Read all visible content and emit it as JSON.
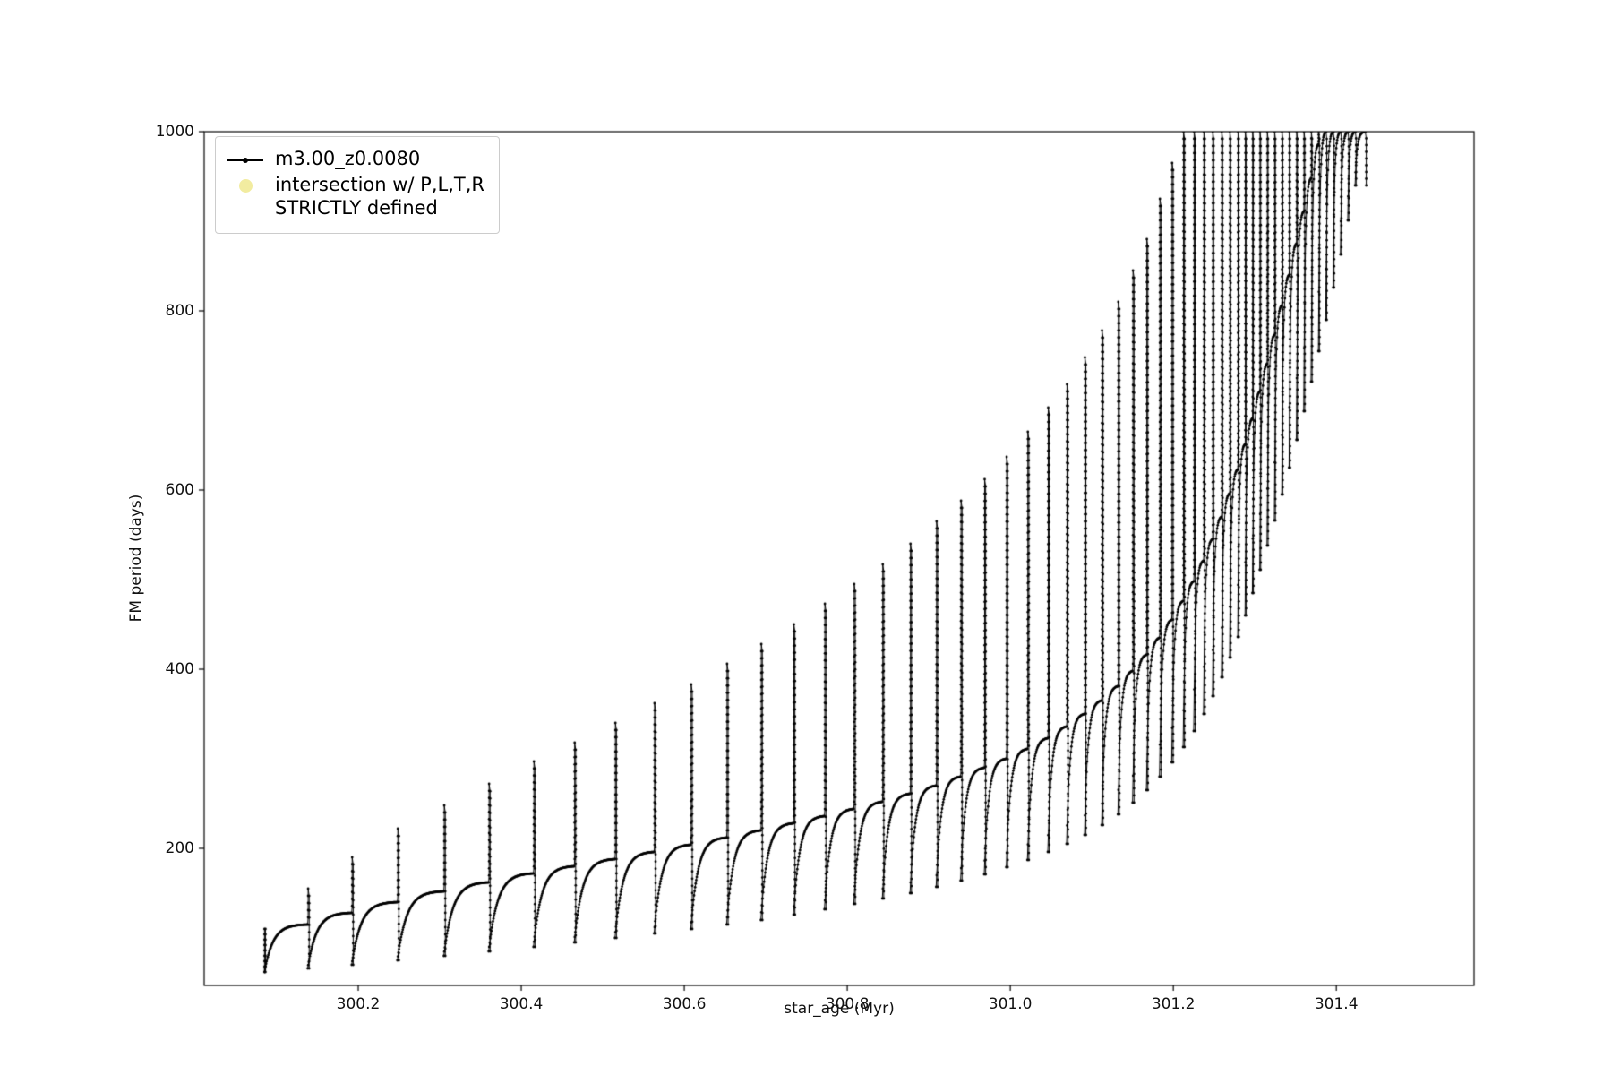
{
  "figure": {
    "background": "#ffffff"
  },
  "chart_data": {
    "type": "line",
    "title": "",
    "xlabel": "star_age (Myr)",
    "ylabel": "FM period (days)",
    "xlim": [
      300.011,
      301.569
    ],
    "ylim": [
      47,
      1000
    ],
    "xticks": [
      300.2,
      300.4,
      300.6,
      300.8,
      301.0,
      301.2,
      301.4
    ],
    "xtick_labels": [
      "300.2",
      "300.4",
      "300.6",
      "300.8",
      "301.0",
      "301.2",
      "301.4"
    ],
    "yticks": [
      200,
      400,
      600,
      800,
      1000
    ],
    "ytick_labels": [
      "200",
      "400",
      "600",
      "800",
      "1000"
    ],
    "grid": false,
    "legend": {
      "position": "upper-left",
      "entries": [
        {
          "label": "m3.00_z0.0080",
          "marker": "line-with-dot",
          "color": "#000000"
        },
        {
          "label": "intersection w/ P,L,T,R\nSTRICTLY defined",
          "marker": "large-dot",
          "color": "#f2eca0"
        }
      ]
    },
    "series": [
      {
        "name": "m3.00_z0.0080",
        "color": "#000000",
        "marker": "point",
        "line_style": "solid",
        "initial_spike": {
          "age": 300.085,
          "peak": 110,
          "bottom": 62
        },
        "cycles_format": [
          "age_start",
          "age_end",
          "period_min",
          "period_plateau",
          "spike_peak"
        ],
        "cycles": [
          [
            300.085,
            300.138,
            62,
            115,
            155
          ],
          [
            300.138,
            300.192,
            66,
            128,
            190
          ],
          [
            300.192,
            300.248,
            70,
            140,
            222
          ],
          [
            300.248,
            300.305,
            75,
            152,
            248
          ],
          [
            300.305,
            300.36,
            80,
            162,
            272
          ],
          [
            300.36,
            300.415,
            85,
            172,
            297
          ],
          [
            300.415,
            300.465,
            90,
            180,
            318
          ],
          [
            300.465,
            300.515,
            95,
            188,
            340
          ],
          [
            300.515,
            300.563,
            100,
            196,
            362
          ],
          [
            300.563,
            300.608,
            105,
            204,
            383
          ],
          [
            300.608,
            300.652,
            110,
            212,
            406
          ],
          [
            300.652,
            300.694,
            115,
            220,
            428
          ],
          [
            300.694,
            300.734,
            120,
            228,
            450
          ],
          [
            300.734,
            300.772,
            126,
            236,
            473
          ],
          [
            300.772,
            300.808,
            132,
            244,
            495
          ],
          [
            300.808,
            300.843,
            138,
            252,
            517
          ],
          [
            300.843,
            300.877,
            144,
            261,
            540
          ],
          [
            300.877,
            300.909,
            150,
            270,
            565
          ],
          [
            300.909,
            300.939,
            157,
            280,
            588
          ],
          [
            300.939,
            300.968,
            164,
            290,
            612
          ],
          [
            300.968,
            300.995,
            171,
            300,
            637
          ],
          [
            300.995,
            301.021,
            179,
            311,
            665
          ],
          [
            301.021,
            301.046,
            187,
            323,
            692
          ],
          [
            301.046,
            301.069,
            196,
            336,
            718
          ],
          [
            301.069,
            301.091,
            205,
            350,
            748
          ],
          [
            301.091,
            301.112,
            215,
            365,
            778
          ],
          [
            301.112,
            301.132,
            226,
            381,
            810
          ],
          [
            301.132,
            301.15,
            238,
            398,
            845
          ],
          [
            301.15,
            301.167,
            251,
            416,
            880
          ],
          [
            301.167,
            301.183,
            265,
            435,
            925
          ],
          [
            301.183,
            301.198,
            280,
            455,
            965
          ],
          [
            301.198,
            301.212,
            296,
            476,
            1000
          ],
          [
            301.212,
            301.225,
            313,
            498,
            1000
          ],
          [
            301.225,
            301.237,
            331,
            521,
            1000
          ],
          [
            301.237,
            301.248,
            350,
            545,
            1000
          ],
          [
            301.248,
            301.259,
            370,
            570,
            1000
          ],
          [
            301.259,
            301.269,
            391,
            596,
            1000
          ],
          [
            301.269,
            301.279,
            413,
            623,
            1000
          ],
          [
            301.279,
            301.288,
            436,
            651,
            1000
          ],
          [
            301.288,
            301.297,
            460,
            680,
            1000
          ],
          [
            301.297,
            301.306,
            485,
            710,
            1000
          ],
          [
            301.306,
            301.315,
            511,
            741,
            1000
          ],
          [
            301.315,
            301.324,
            538,
            773,
            1000
          ],
          [
            301.324,
            301.333,
            566,
            806,
            1000
          ],
          [
            301.333,
            301.342,
            595,
            840,
            1000
          ],
          [
            301.342,
            301.351,
            625,
            875,
            1000
          ],
          [
            301.351,
            301.36,
            656,
            911,
            1000
          ],
          [
            301.36,
            301.369,
            688,
            948,
            1000
          ],
          [
            301.369,
            301.378,
            721,
            986,
            1000
          ],
          [
            301.378,
            301.387,
            755,
            1000,
            1000
          ],
          [
            301.387,
            301.396,
            790,
            1000,
            1000
          ],
          [
            301.396,
            301.405,
            826,
            1000,
            1000
          ],
          [
            301.405,
            301.414,
            863,
            1000,
            1000
          ],
          [
            301.414,
            301.423,
            901,
            1000,
            1000
          ],
          [
            301.423,
            301.435,
            940,
            1000,
            1000
          ]
        ]
      }
    ]
  }
}
